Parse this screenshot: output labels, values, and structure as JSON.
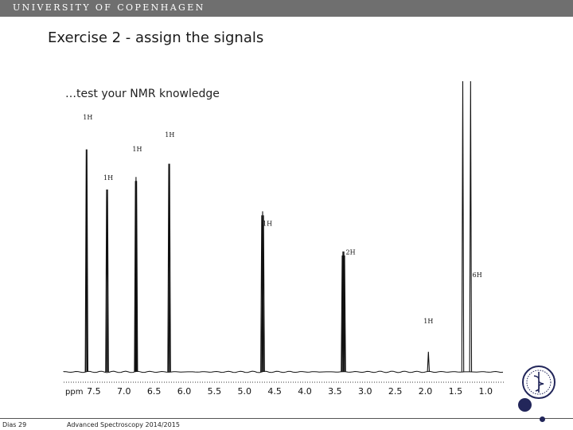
{
  "header": {
    "university": "UNIVERSITY OF COPENHAGEN"
  },
  "slide": {
    "title": "Exercise 2 - assign the signals",
    "subtitle": "…test your NMR knowledge"
  },
  "footer": {
    "page": "Dias 29",
    "course": "Advanced Spectroscopy 2014/2015"
  },
  "colors": {
    "header_bar": "#6f6f6f",
    "seal": "#22265a"
  },
  "chart_data": {
    "type": "line",
    "x_unit_label": "ppm",
    "x_ticks": [
      7.5,
      7.0,
      6.5,
      6.0,
      5.5,
      5.0,
      4.5,
      4.0,
      3.5,
      3.0,
      2.5,
      2.0,
      1.5,
      1.0
    ],
    "x_tick_labels": [
      "7.5",
      "7.0",
      "6.5",
      "6.0",
      "5.5",
      "5.0",
      "4.5",
      "4.0",
      "3.5",
      "3.0",
      "2.5",
      "2.0",
      "1.5",
      "1.0"
    ],
    "xlim": [
      8.0,
      0.7
    ],
    "x_reversed": true,
    "peaks": [
      {
        "ppm": 7.62,
        "height": 0.79,
        "lines": [
          -0.006,
          0.006
        ]
      },
      {
        "ppm": 7.28,
        "height": 0.65,
        "lines": [
          -0.008,
          0.008
        ]
      },
      {
        "ppm": 6.8,
        "height": 0.68,
        "lines": [
          -0.01,
          0.0,
          0.01
        ]
      },
      {
        "ppm": 6.25,
        "height": 0.74,
        "lines": [
          -0.007,
          0.007
        ]
      },
      {
        "ppm": 4.7,
        "height": 0.56,
        "lines": [
          -0.015,
          0.0,
          0.015
        ]
      },
      {
        "ppm": 3.36,
        "height": 0.42,
        "lines": [
          -0.02,
          -0.008,
          0.008,
          0.02
        ]
      },
      {
        "ppm": 1.95,
        "height": 0.07,
        "lines": [
          0.0
        ]
      },
      {
        "ppm": 1.38,
        "height": 1.35,
        "lines": [
          0.0
        ]
      },
      {
        "ppm": 1.25,
        "height": 1.35,
        "lines": [
          0.0
        ]
      }
    ],
    "annotations": [
      {
        "text": "1H",
        "ppm": 7.6,
        "level": 0.88
      },
      {
        "text": "1H",
        "ppm": 7.26,
        "level": 0.67
      },
      {
        "text": "1H",
        "ppm": 6.78,
        "level": 0.77
      },
      {
        "text": "1H",
        "ppm": 6.24,
        "level": 0.82
      },
      {
        "text": "1H",
        "ppm": 4.62,
        "level": 0.51
      },
      {
        "text": "2H",
        "ppm": 3.24,
        "level": 0.41
      },
      {
        "text": "1H",
        "ppm": 1.95,
        "level": 0.17
      },
      {
        "text": "6H",
        "ppm": 1.14,
        "level": 0.33
      }
    ]
  }
}
